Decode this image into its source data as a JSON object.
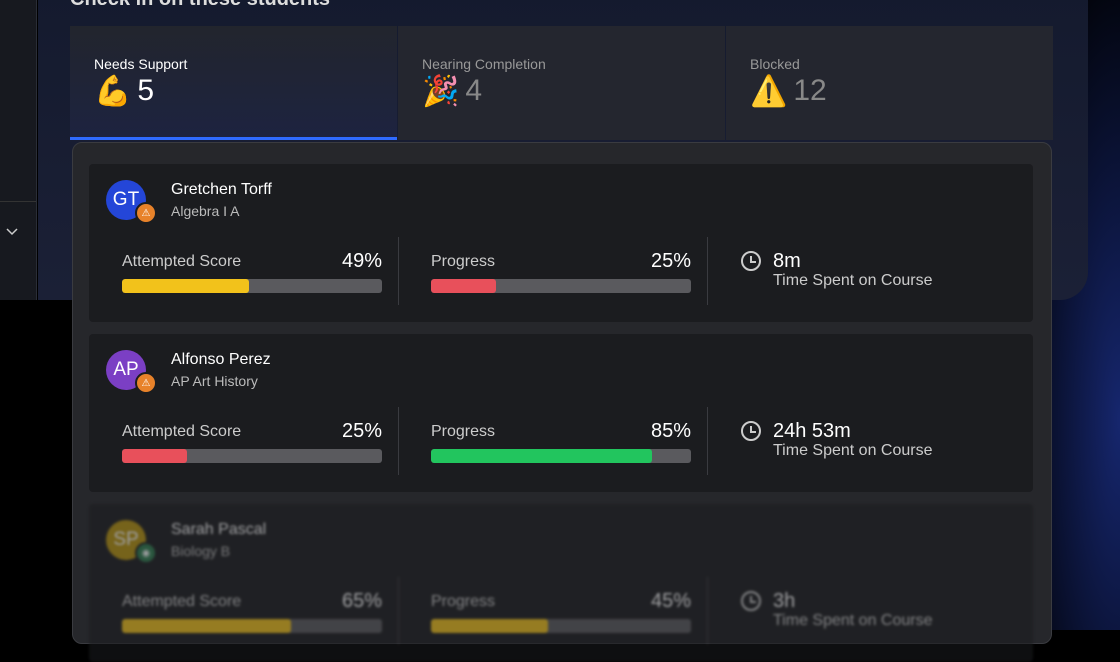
{
  "header": {
    "title": "Check in on these students"
  },
  "tabs": [
    {
      "label": "Needs Support",
      "icon": "💪",
      "count": 5
    },
    {
      "label": "Nearing Completion",
      "icon": "🎉",
      "count": 4
    },
    {
      "label": "Blocked",
      "icon": "⚠️",
      "count": 12
    }
  ],
  "students": [
    {
      "initials": "GT",
      "name": "Gretchen Torff",
      "course": "Algebra I A",
      "avatar_color": "#2446d8",
      "badge": "warning",
      "score_label": "Attempted Score",
      "score": {
        "value": 49,
        "label": "49%"
      },
      "score_color": "#f2c21b",
      "progress_label": "Progress",
      "progress": {
        "value": 25,
        "label": "25%"
      },
      "progress_color": "#e8505b",
      "time": "8m",
      "time_label": "Time Spent on Course"
    },
    {
      "initials": "AP",
      "name": "Alfonso Perez",
      "course": "AP Art History",
      "avatar_color": "#7b3fc4",
      "badge": "warning",
      "score_label": "Attempted Score",
      "score": {
        "value": 25,
        "label": "25%"
      },
      "score_color": "#e8505b",
      "progress_label": "Progress",
      "progress": {
        "value": 85,
        "label": "85%"
      },
      "progress_color": "#22c55e",
      "time": "24h 53m",
      "time_label": "Time Spent on Course"
    },
    {
      "initials": "SP",
      "name": "Sarah Pascal",
      "course": "Biology B",
      "avatar_color": "#b8940e",
      "badge": "ok",
      "score_label": "Attempted Score",
      "score": {
        "value": 65,
        "label": "65%"
      },
      "score_color": "#f2c21b",
      "progress_label": "Progress",
      "progress": {
        "value": 45,
        "label": "45%"
      },
      "progress_color": "#f2c21b",
      "time": "3h",
      "time_label": "Time Spent on Course"
    }
  ]
}
